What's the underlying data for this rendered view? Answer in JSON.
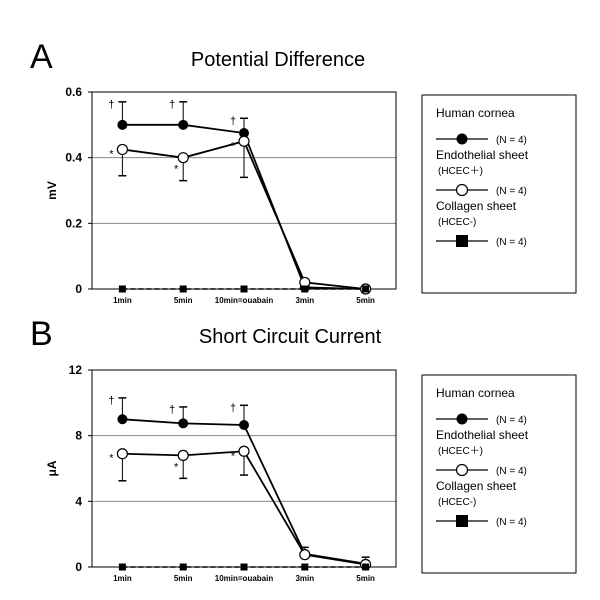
{
  "chart_data": [
    {
      "panel": "A",
      "type": "line",
      "title": "Potential Difference",
      "ylabel": "mV",
      "ylim": [
        0,
        0.6
      ],
      "yticks": [
        "0",
        "0.2",
        "0.4",
        "0.6"
      ],
      "categories": [
        "1min",
        "5min",
        "10min=ouabain",
        "3min",
        "5min"
      ],
      "series": [
        {
          "name": "Human cornea",
          "n_label": "(N = 4)",
          "marker": "filled-circle",
          "values": [
            0.5,
            0.5,
            0.475,
            0.005,
            0.0
          ],
          "error_up": [
            0.07,
            0.07,
            0.045,
            0,
            0
          ],
          "annotations": [
            "†",
            "†",
            "†",
            "",
            ""
          ]
        },
        {
          "name": "Endothelial sheet",
          "sublabel": "(HCEC＋)",
          "n_label": "(N = 4)",
          "marker": "open-circle",
          "values": [
            0.425,
            0.4,
            0.45,
            0.02,
            0.0
          ],
          "error_down": [
            0.08,
            0.07,
            0.11,
            0,
            0
          ],
          "annotations": [
            "*",
            "*",
            "*",
            "",
            ""
          ]
        },
        {
          "name": "Collagen sheet",
          "sublabel": "(HCEC-)",
          "n_label": "(N = 4)",
          "marker": "filled-square",
          "values": [
            0,
            0,
            0,
            0,
            0
          ]
        }
      ]
    },
    {
      "panel": "B",
      "type": "line",
      "title": "Short Circuit Current",
      "ylabel": "μA",
      "ylim": [
        0,
        12
      ],
      "yticks": [
        "0",
        "4",
        "8",
        "12"
      ],
      "categories": [
        "1min",
        "5min",
        "10min=ouabain",
        "3min",
        "5min"
      ],
      "series": [
        {
          "name": "Human cornea",
          "n_label": "(N = 4)",
          "marker": "filled-circle",
          "values": [
            9.0,
            8.75,
            8.65,
            0.8,
            0.2
          ],
          "error_up": [
            1.3,
            1.0,
            1.2,
            0.4,
            0.4
          ],
          "annotations": [
            "†",
            "†",
            "†",
            "",
            ""
          ]
        },
        {
          "name": "Endothelial sheet",
          "sublabel": "(HCEC＋)",
          "n_label": "(N = 4)",
          "marker": "open-circle",
          "values": [
            6.9,
            6.8,
            7.05,
            0.75,
            0.15
          ],
          "error_down": [
            1.65,
            1.4,
            1.45,
            0,
            0
          ],
          "annotations": [
            "*",
            "*",
            "*",
            "",
            ""
          ]
        },
        {
          "name": "Collagen sheet",
          "sublabel": "(HCEC-)",
          "n_label": "(N = 4)",
          "marker": "filled-square",
          "values": [
            0,
            0,
            0,
            0,
            0
          ]
        }
      ]
    }
  ]
}
